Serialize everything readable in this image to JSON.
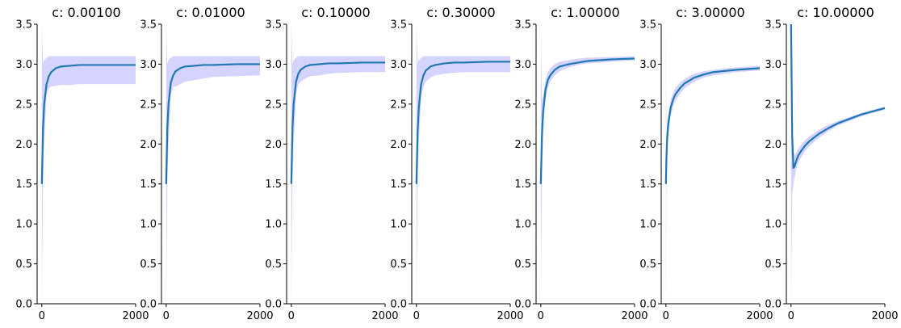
{
  "chart_data": [
    {
      "type": "line",
      "title": "c: 0.00100",
      "xlim": [
        -100,
        2000
      ],
      "ylim": [
        0,
        3.5
      ],
      "xticks": [
        0,
        2000
      ],
      "xtick_labels": [
        "0",
        "2000"
      ],
      "yticks": [
        0,
        0.5,
        1,
        1.5,
        2,
        2.5,
        3,
        3.5
      ],
      "ytick_labels": [
        "0.0",
        "0.5",
        "1.0",
        "1.5",
        "2.0",
        "2.5",
        "3.0",
        "3.5"
      ],
      "series": [
        {
          "x": [
            0,
            25,
            50,
            100,
            150,
            200,
            300,
            400,
            600,
            800,
            1000,
            1500,
            2000
          ],
          "mean": [
            1.5,
            2.2,
            2.5,
            2.75,
            2.85,
            2.9,
            2.95,
            2.97,
            2.98,
            2.99,
            2.99,
            2.99,
            2.99
          ],
          "upper": [
            3.5,
            3.0,
            3.05,
            3.08,
            3.1,
            3.1,
            3.1,
            3.1,
            3.1,
            3.1,
            3.1,
            3.1,
            3.1
          ],
          "lower": [
            0.0,
            1.5,
            2.0,
            2.6,
            2.7,
            2.72,
            2.73,
            2.74,
            2.74,
            2.75,
            2.75,
            2.75,
            2.75
          ]
        }
      ],
      "grid": false
    },
    {
      "type": "line",
      "title": "c: 0.01000",
      "xlim": [
        -100,
        2000
      ],
      "ylim": [
        0,
        3.5
      ],
      "xticks": [
        0,
        2000
      ],
      "xtick_labels": [
        "0",
        "2000"
      ],
      "yticks": [
        0,
        0.5,
        1,
        1.5,
        2,
        2.5,
        3,
        3.5
      ],
      "ytick_labels": [
        "0.0",
        "0.5",
        "1.0",
        "1.5",
        "2.0",
        "2.5",
        "3.0",
        "3.5"
      ],
      "series": [
        {
          "x": [
            0,
            25,
            50,
            100,
            150,
            200,
            300,
            400,
            600,
            800,
            1000,
            1500,
            2000
          ],
          "mean": [
            1.5,
            2.2,
            2.5,
            2.77,
            2.86,
            2.91,
            2.95,
            2.97,
            2.98,
            2.99,
            2.99,
            3.0,
            3.0
          ],
          "upper": [
            3.5,
            3.0,
            3.05,
            3.08,
            3.1,
            3.1,
            3.1,
            3.1,
            3.1,
            3.1,
            3.1,
            3.1,
            3.1
          ],
          "lower": [
            0.0,
            1.5,
            2.0,
            2.6,
            2.72,
            2.72,
            2.75,
            2.78,
            2.8,
            2.82,
            2.84,
            2.85,
            2.86
          ]
        }
      ],
      "grid": false
    },
    {
      "type": "line",
      "title": "c: 0.10000",
      "xlim": [
        -100,
        2000
      ],
      "ylim": [
        0,
        3.5
      ],
      "xticks": [
        0,
        2000
      ],
      "xtick_labels": [
        "0",
        "2000"
      ],
      "yticks": [
        0,
        0.5,
        1,
        1.5,
        2,
        2.5,
        3,
        3.5
      ],
      "ytick_labels": [
        "0.0",
        "0.5",
        "1.0",
        "1.5",
        "2.0",
        "2.5",
        "3.0",
        "3.5"
      ],
      "series": [
        {
          "x": [
            0,
            25,
            50,
            100,
            150,
            200,
            300,
            400,
            600,
            800,
            1000,
            1500,
            2000
          ],
          "mean": [
            1.5,
            2.2,
            2.5,
            2.78,
            2.88,
            2.93,
            2.97,
            2.99,
            3.0,
            3.01,
            3.01,
            3.02,
            3.02
          ],
          "upper": [
            3.5,
            3.0,
            3.05,
            3.08,
            3.1,
            3.1,
            3.1,
            3.1,
            3.1,
            3.1,
            3.1,
            3.1,
            3.1
          ],
          "lower": [
            0.0,
            1.5,
            2.0,
            2.62,
            2.75,
            2.78,
            2.82,
            2.85,
            2.86,
            2.88,
            2.89,
            2.9,
            2.9
          ]
        }
      ],
      "grid": false
    },
    {
      "type": "line",
      "title": "c: 0.30000",
      "xlim": [
        -100,
        2000
      ],
      "ylim": [
        0,
        3.5
      ],
      "xticks": [
        0,
        2000
      ],
      "xtick_labels": [
        "0",
        "2000"
      ],
      "yticks": [
        0,
        0.5,
        1,
        1.5,
        2,
        2.5,
        3,
        3.5
      ],
      "ytick_labels": [
        "0.0",
        "0.5",
        "1.0",
        "1.5",
        "2.0",
        "2.5",
        "3.0",
        "3.5"
      ],
      "series": [
        {
          "x": [
            0,
            25,
            50,
            100,
            150,
            200,
            300,
            400,
            600,
            800,
            1000,
            1500,
            2000
          ],
          "mean": [
            1.5,
            2.15,
            2.45,
            2.75,
            2.86,
            2.92,
            2.97,
            2.99,
            3.01,
            3.02,
            3.02,
            3.03,
            3.03
          ],
          "upper": [
            3.5,
            3.0,
            3.05,
            3.08,
            3.1,
            3.1,
            3.1,
            3.1,
            3.1,
            3.1,
            3.1,
            3.1,
            3.1
          ],
          "lower": [
            0.0,
            1.5,
            2.0,
            2.6,
            2.72,
            2.78,
            2.83,
            2.86,
            2.88,
            2.89,
            2.9,
            2.9,
            2.9
          ]
        }
      ],
      "grid": false
    },
    {
      "type": "line",
      "title": "c: 1.00000",
      "xlim": [
        -100,
        2000
      ],
      "ylim": [
        0,
        3.5
      ],
      "xticks": [
        0,
        2000
      ],
      "xtick_labels": [
        "0",
        "2000"
      ],
      "yticks": [
        0,
        0.5,
        1,
        1.5,
        2,
        2.5,
        3,
        3.5
      ],
      "ytick_labels": [
        "0.0",
        "0.5",
        "1.0",
        "1.5",
        "2.0",
        "2.5",
        "3.0",
        "3.5"
      ],
      "series": [
        {
          "x": [
            0,
            25,
            50,
            100,
            150,
            200,
            300,
            400,
            600,
            800,
            1000,
            1500,
            2000
          ],
          "mean": [
            1.5,
            2.1,
            2.4,
            2.68,
            2.8,
            2.86,
            2.93,
            2.97,
            3.0,
            3.02,
            3.04,
            3.06,
            3.07
          ],
          "upper": [
            3.5,
            2.55,
            2.6,
            2.8,
            2.9,
            2.95,
            3.0,
            3.03,
            3.05,
            3.07,
            3.08,
            3.09,
            3.1
          ],
          "lower": [
            0.0,
            1.5,
            2.15,
            2.55,
            2.7,
            2.78,
            2.86,
            2.91,
            2.96,
            2.99,
            3.01,
            3.03,
            3.05
          ]
        }
      ],
      "grid": false
    },
    {
      "type": "line",
      "title": "c: 3.00000",
      "xlim": [
        -100,
        2000
      ],
      "ylim": [
        0,
        3.5
      ],
      "xticks": [
        0,
        2000
      ],
      "xtick_labels": [
        "0",
        "2000"
      ],
      "yticks": [
        0,
        0.5,
        1,
        1.5,
        2,
        2.5,
        3,
        3.5
      ],
      "ytick_labels": [
        "0.0",
        "0.5",
        "1.0",
        "1.5",
        "2.0",
        "2.5",
        "3.0",
        "3.5"
      ],
      "series": [
        {
          "x": [
            0,
            10,
            25,
            50,
            100,
            150,
            200,
            300,
            400,
            600,
            800,
            1000,
            1500,
            2000
          ],
          "mean": [
            1.5,
            1.8,
            2.05,
            2.25,
            2.45,
            2.55,
            2.62,
            2.7,
            2.76,
            2.83,
            2.87,
            2.9,
            2.93,
            2.95
          ],
          "upper": [
            3.5,
            2.1,
            2.25,
            2.38,
            2.55,
            2.64,
            2.7,
            2.77,
            2.82,
            2.88,
            2.91,
            2.93,
            2.96,
            2.98
          ],
          "lower": [
            0.0,
            1.4,
            1.85,
            2.1,
            2.35,
            2.46,
            2.54,
            2.63,
            2.7,
            2.78,
            2.83,
            2.86,
            2.9,
            2.92
          ]
        }
      ],
      "grid": false
    },
    {
      "type": "line",
      "title": "c: 10.00000",
      "xlim": [
        -100,
        2000
      ],
      "ylim": [
        0,
        3.5
      ],
      "xticks": [
        0,
        2000
      ],
      "xtick_labels": [
        "0",
        "2000"
      ],
      "yticks": [
        0,
        0.5,
        1,
        1.5,
        2,
        2.5,
        3,
        3.5
      ],
      "ytick_labels": [
        "0.0",
        "0.5",
        "1.0",
        "1.5",
        "2.0",
        "2.5",
        "3.0",
        "3.5"
      ],
      "series": [
        {
          "x": [
            0,
            25,
            50,
            75,
            100,
            150,
            200,
            300,
            400,
            600,
            800,
            1000,
            1500,
            2000
          ],
          "mean": [
            3.5,
            2.1,
            1.7,
            1.72,
            1.77,
            1.85,
            1.9,
            1.98,
            2.04,
            2.13,
            2.2,
            2.26,
            2.37,
            2.45
          ],
          "upper": [
            3.5,
            2.3,
            1.9,
            1.86,
            1.88,
            1.94,
            1.98,
            2.05,
            2.1,
            2.18,
            2.24,
            2.29,
            2.39,
            2.47
          ],
          "lower": [
            0.0,
            1.35,
            1.5,
            1.58,
            1.66,
            1.76,
            1.82,
            1.91,
            1.98,
            2.08,
            2.16,
            2.23,
            2.35,
            2.43
          ]
        }
      ],
      "grid": false
    }
  ],
  "colors": {
    "line": "#1f77b4",
    "band": "#ccccff",
    "axis": "#000000"
  }
}
